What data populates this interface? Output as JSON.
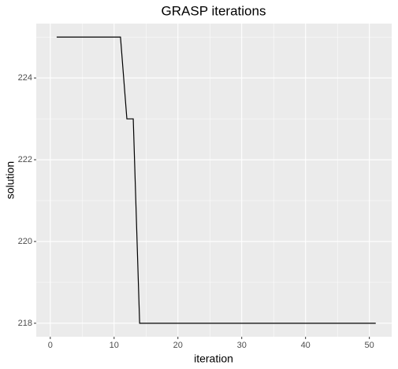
{
  "chart_data": {
    "type": "line",
    "title": "GRASP iterations",
    "x_label": "iteration",
    "y_label": "solution",
    "x": [
      1,
      2,
      3,
      4,
      5,
      6,
      7,
      8,
      9,
      10,
      11,
      12,
      13,
      14,
      15,
      16,
      17,
      18,
      19,
      20,
      21,
      22,
      23,
      24,
      25,
      26,
      27,
      28,
      29,
      30,
      31,
      32,
      33,
      34,
      35,
      36,
      37,
      38,
      39,
      40,
      41,
      42,
      43,
      44,
      45,
      46,
      47,
      48,
      49,
      50,
      51
    ],
    "series": [
      {
        "name": "solution",
        "color": "#000000",
        "values": [
          225,
          225,
          225,
          225,
          225,
          225,
          225,
          225,
          225,
          225,
          225,
          223,
          223,
          218,
          218,
          218,
          218,
          218,
          218,
          218,
          218,
          218,
          218,
          218,
          218,
          218,
          218,
          218,
          218,
          218,
          218,
          218,
          218,
          218,
          218,
          218,
          218,
          218,
          218,
          218,
          218,
          218,
          218,
          218,
          218,
          218,
          218,
          218,
          218,
          218,
          218
        ]
      }
    ],
    "xlim": [
      -2.2,
      53.5
    ],
    "xticks": [
      0,
      10,
      20,
      30,
      40,
      50
    ],
    "xminor": [
      5,
      15,
      25,
      35,
      45
    ],
    "ylim": [
      217.67,
      225.33
    ],
    "yticks": [
      218,
      220,
      222,
      224
    ],
    "yminor": [
      219,
      221,
      223,
      225
    ],
    "grid": true
  }
}
